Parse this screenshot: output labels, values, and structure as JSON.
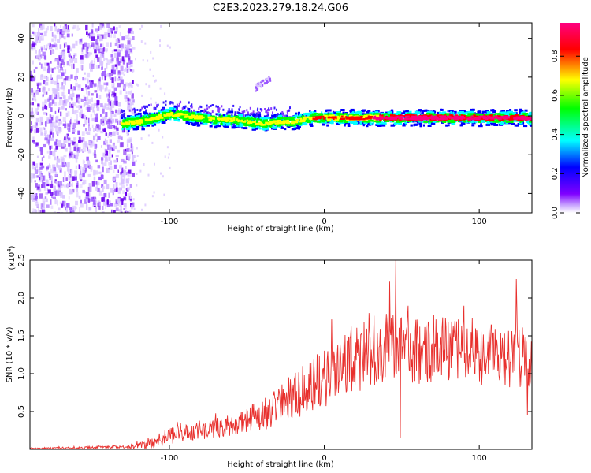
{
  "figure_title": "C2E3.2023.279.18.24.G06",
  "chart_data": [
    {
      "type": "heatmap",
      "title": "",
      "xlabel": "Height of straight line (km)",
      "ylabel": "Frequency (Hz)",
      "xlim": [
        -190,
        134
      ],
      "ylim": [
        -50,
        48
      ],
      "x_ticks": [
        "-100",
        "0",
        "100"
      ],
      "x_tick_values": [
        -100,
        0,
        100
      ],
      "y_ticks": [
        "-40",
        "-20",
        "0",
        "20",
        "40"
      ],
      "y_tick_values": [
        -40,
        -20,
        0,
        20,
        40
      ],
      "colorbar": {
        "label": "Normalized spectral amplitude",
        "range": [
          0,
          0.97
        ],
        "ticks": [
          "0.0",
          "0.2",
          "0.4",
          "0.6",
          "0.8"
        ],
        "tick_values": [
          0,
          0.2,
          0.4,
          0.6,
          0.8
        ],
        "colors": [
          "#ffffff",
          "#7f00ff",
          "#0000ff",
          "#00ffff",
          "#00ff00",
          "#ffff00",
          "#ff0000",
          "#ff0080"
        ]
      },
      "ridge": {
        "x": [
          -132,
          -120,
          -110,
          -100,
          -90,
          -80,
          -70,
          -60,
          -50,
          -40,
          -30,
          -20,
          -10,
          0,
          10,
          20,
          30,
          40,
          50,
          60,
          70,
          80,
          90,
          100,
          110,
          120,
          134
        ],
        "y": [
          -4,
          -3,
          -1,
          1,
          0,
          -1,
          -2,
          -2,
          -3,
          -4,
          -3,
          -3,
          -1,
          -1,
          -1,
          -1,
          -1,
          -1,
          -1,
          -1,
          -1,
          -1,
          -1,
          -1,
          -1,
          -1,
          -1
        ]
      },
      "noise_region_x": [
        -190,
        -130
      ],
      "side_branch": {
        "x": [
          -45,
          -35
        ],
        "y": [
          15,
          20
        ]
      }
    },
    {
      "type": "line",
      "title": "",
      "xlabel": "Height of straight line (km)",
      "ylabel": "SNR (10 * v/v)",
      "y_multiplier": "(x10",
      "y_multiplier_exp": "4",
      "y_multiplier_close": ")",
      "xlim": [
        -190,
        134
      ],
      "ylim": [
        0,
        2.5
      ],
      "x_ticks": [
        "-100",
        "0",
        "100"
      ],
      "x_tick_values": [
        -100,
        0,
        100
      ],
      "y_ticks": [
        "0.5",
        "1.0",
        "1.5",
        "2.0",
        "2.5"
      ],
      "y_tick_values": [
        0.5,
        1.0,
        1.5,
        2.0,
        2.5
      ],
      "color": "#e8302d",
      "envelope": {
        "x": [
          -190,
          -130,
          -120,
          -110,
          -100,
          -80,
          -60,
          -40,
          -20,
          0,
          20,
          40,
          60,
          80,
          100,
          120,
          134
        ],
        "base": [
          0.01,
          0.03,
          0.05,
          0.08,
          0.18,
          0.25,
          0.3,
          0.45,
          0.7,
          0.95,
          1.2,
          1.35,
          1.3,
          1.3,
          1.25,
          1.25,
          1.2
        ],
        "amp": [
          0.01,
          0.02,
          0.06,
          0.07,
          0.12,
          0.12,
          0.15,
          0.22,
          0.3,
          0.4,
          0.45,
          0.45,
          0.45,
          0.45,
          0.4,
          0.45,
          0.4
        ]
      },
      "peaks": [
        {
          "x": 46,
          "y": 2.5
        },
        {
          "x": 49,
          "y": 0.15
        },
        {
          "x": 124,
          "y": 2.25
        },
        {
          "x": 131,
          "y": 0.45
        }
      ]
    }
  ]
}
